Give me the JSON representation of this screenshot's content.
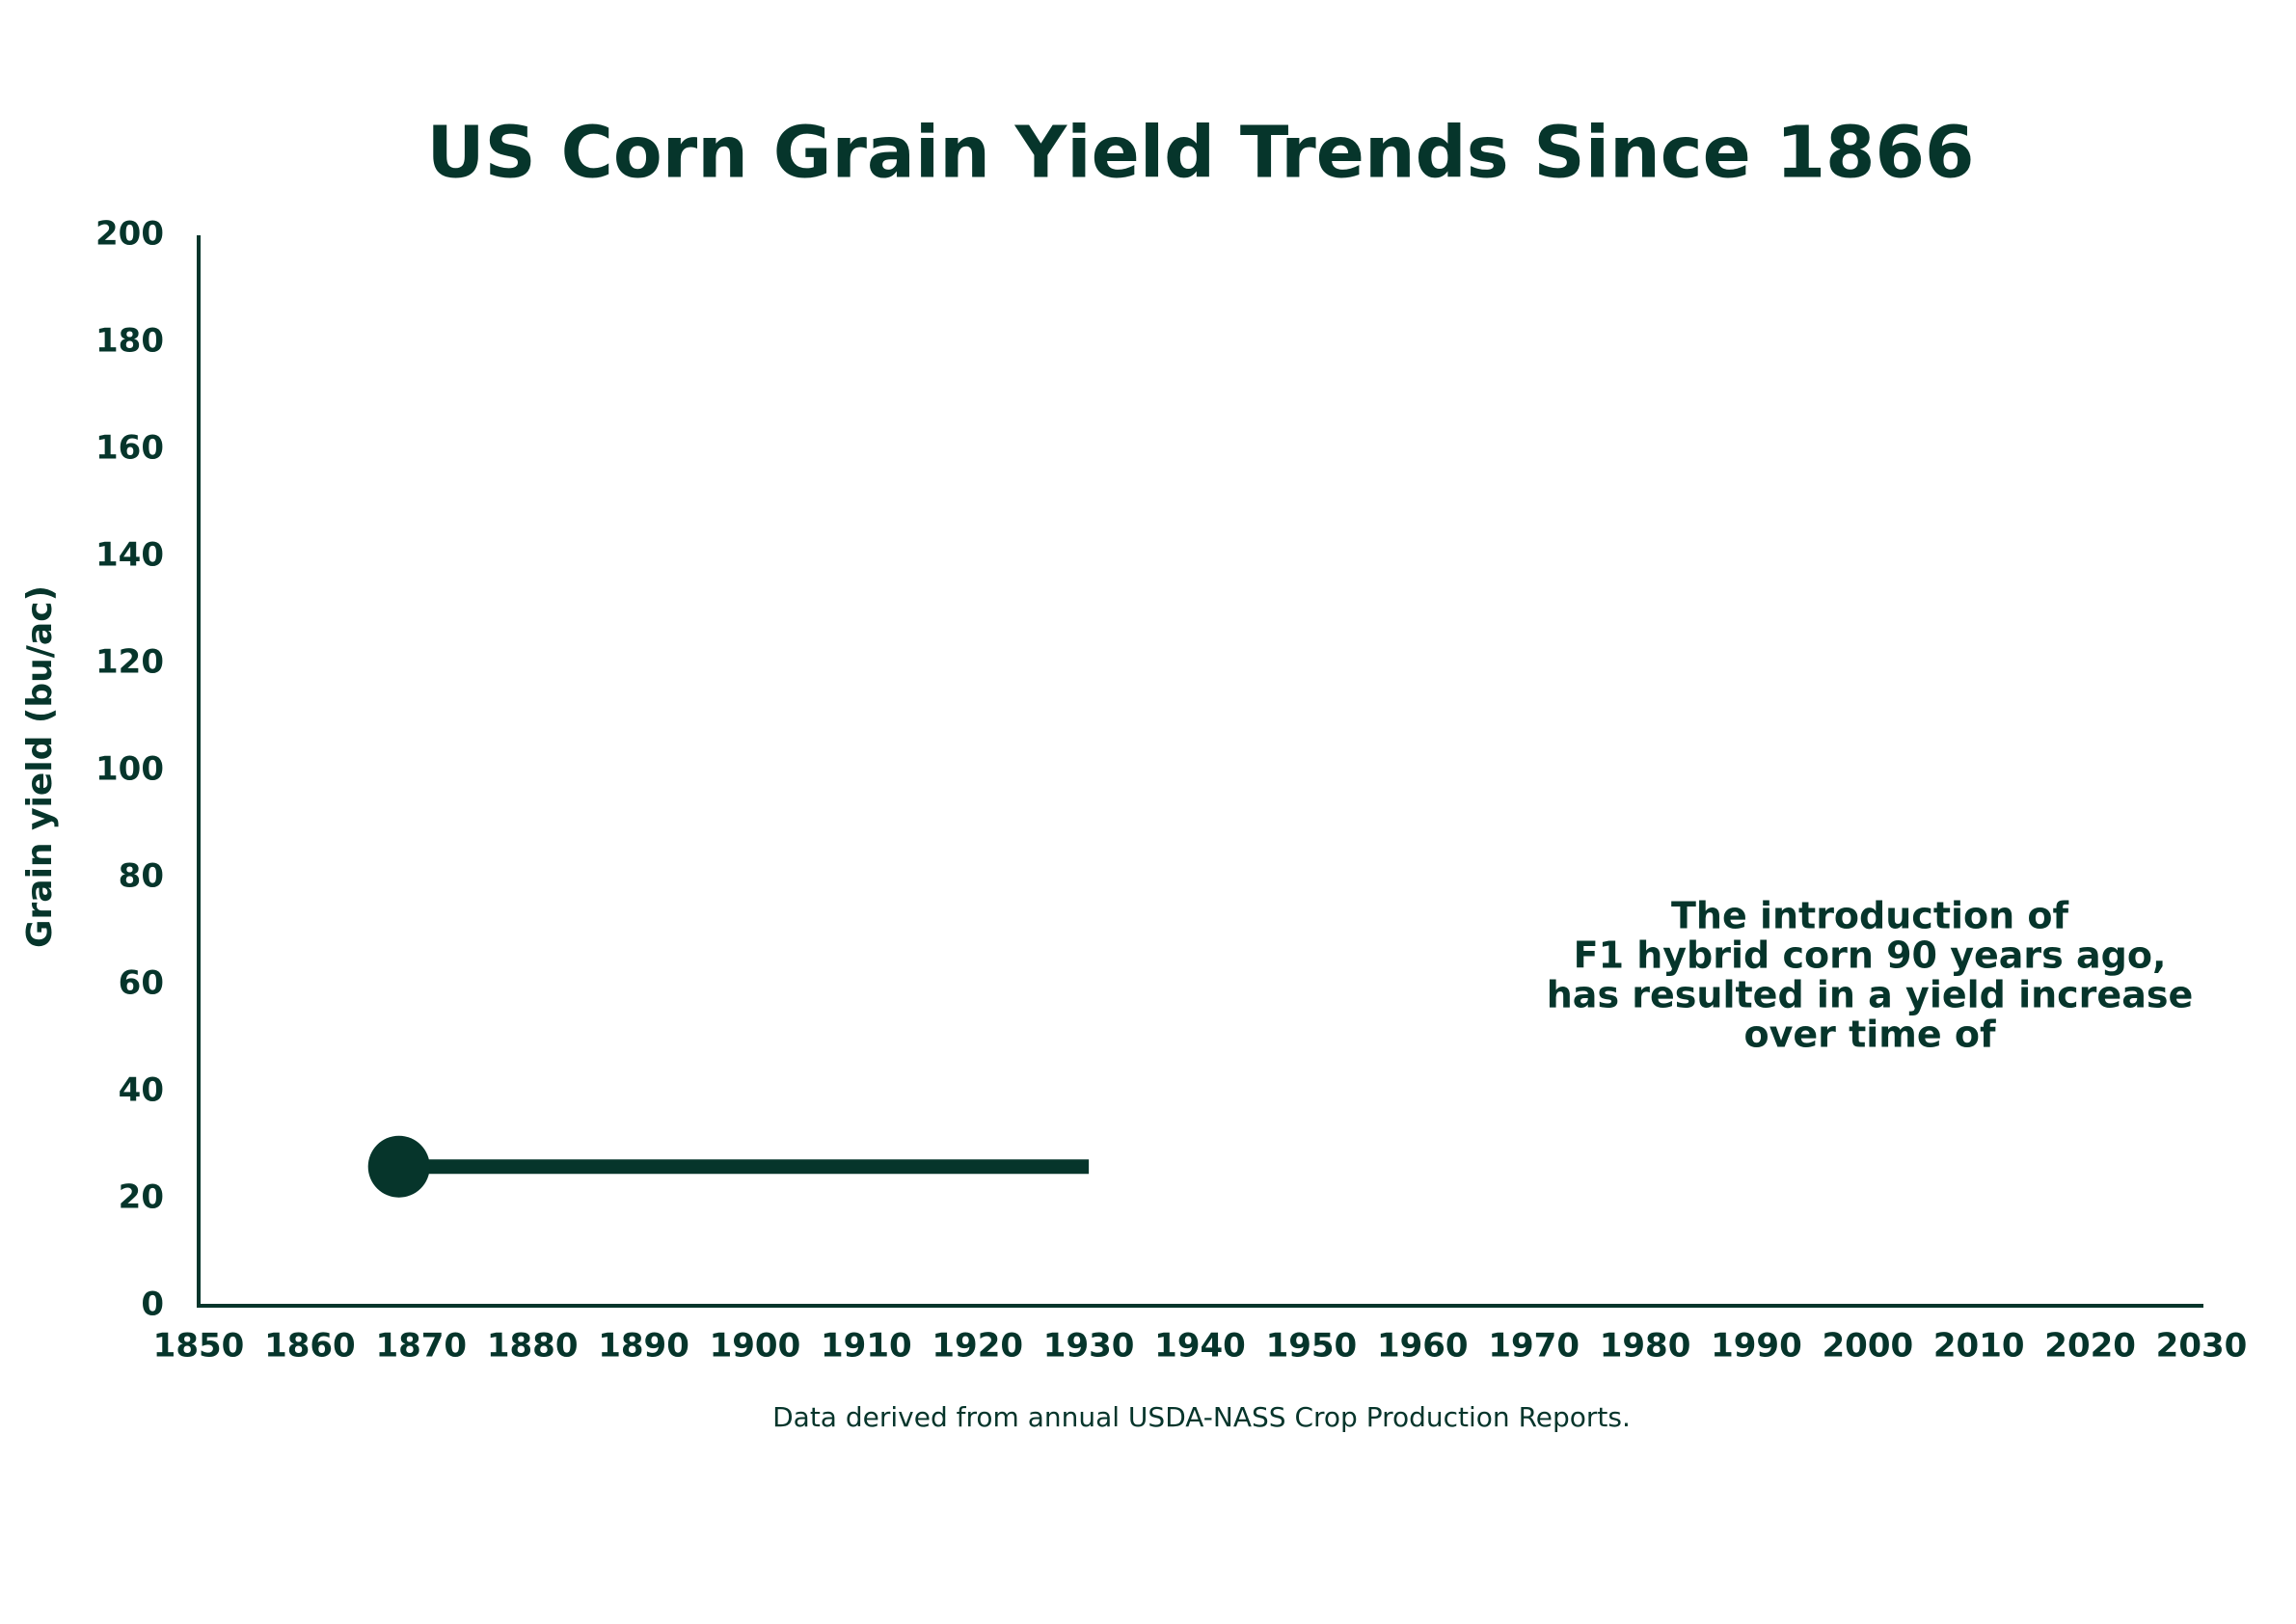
{
  "chart_data": {
    "type": "line",
    "title": "US Corn Grain Yield Trends Since 1866",
    "y_label": "Grain yield (bu/ac)",
    "footnote": "Data derived from annual USDA-NASS Crop Production Reports.",
    "annotation": [
      "The introduction of",
      "F1 hybrid corn 90 years ago,",
      "has resulted in a yield increase",
      "over time of"
    ],
    "x": [
      1868,
      1930
    ],
    "series": [
      {
        "color": "#06352b",
        "values": [
          26,
          26
        ]
      }
    ],
    "xlim": [
      1850,
      2030
    ],
    "xticks": [
      1850,
      1860,
      1870,
      1880,
      1890,
      1900,
      1910,
      1920,
      1930,
      1940,
      1950,
      1960,
      1970,
      1980,
      1990,
      2000,
      2010,
      2020,
      2030
    ],
    "ylim": [
      0,
      200
    ],
    "yticks": [
      0,
      20,
      40,
      60,
      80,
      100,
      120,
      140,
      160,
      180,
      200
    ],
    "grid": false
  }
}
